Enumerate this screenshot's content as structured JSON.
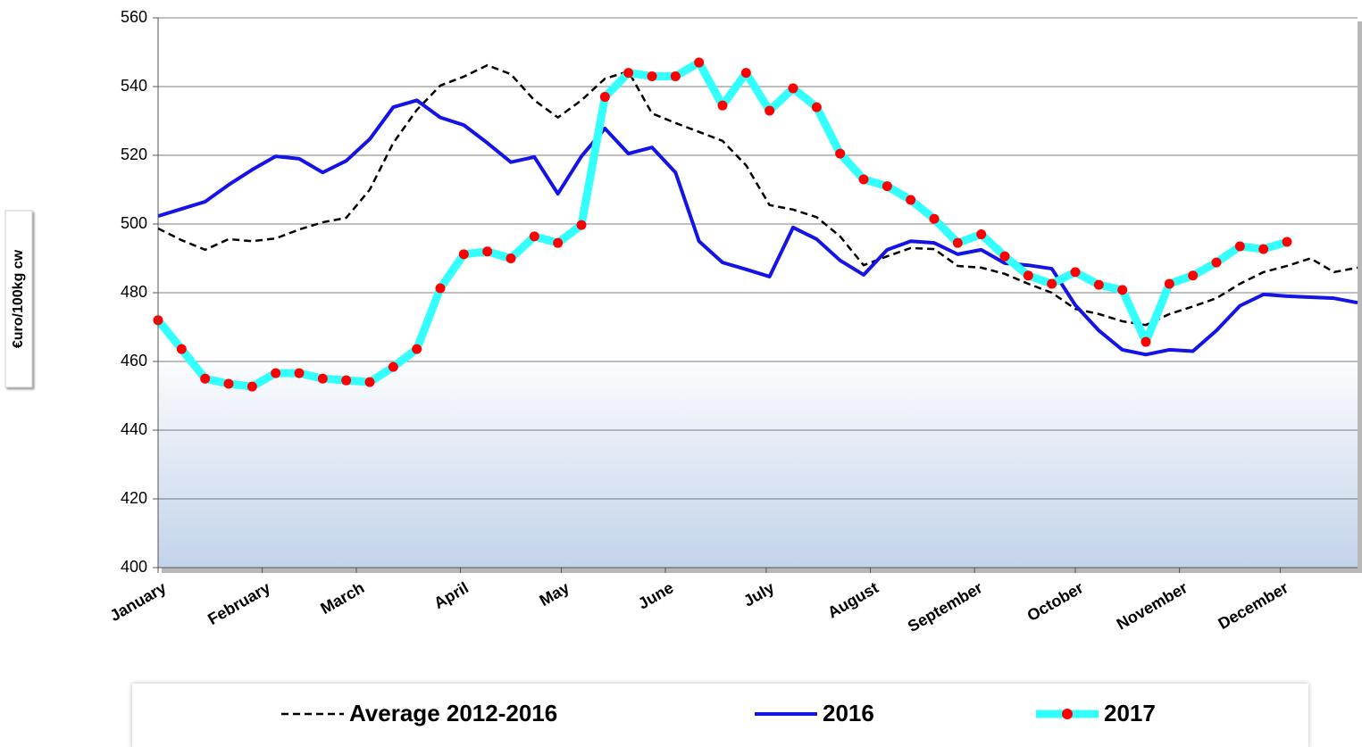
{
  "chart_data": {
    "type": "line",
    "y_label": "€uro/100kg cw",
    "x": [
      0,
      7,
      14,
      21,
      28,
      35,
      42,
      49,
      56,
      63,
      70,
      77,
      84,
      91,
      98,
      105,
      112,
      119,
      126,
      133,
      140,
      147,
      154,
      161,
      168,
      175,
      182,
      189,
      196,
      203,
      210,
      217,
      224,
      231,
      238,
      245,
      252,
      259,
      266,
      273,
      280,
      287,
      294,
      301,
      308,
      315,
      322,
      329,
      336,
      343,
      350,
      357
    ],
    "xlim": [
      0,
      357
    ],
    "xticks": [
      {
        "value": 0,
        "label": "January"
      },
      {
        "value": 31,
        "label": "February"
      },
      {
        "value": 59,
        "label": "March"
      },
      {
        "value": 90,
        "label": "April"
      },
      {
        "value": 120,
        "label": "May"
      },
      {
        "value": 151,
        "label": "June"
      },
      {
        "value": 181,
        "label": "July"
      },
      {
        "value": 212,
        "label": "August"
      },
      {
        "value": 243,
        "label": "September"
      },
      {
        "value": 273,
        "label": "October"
      },
      {
        "value": 304,
        "label": "November"
      },
      {
        "value": 334,
        "label": "December"
      }
    ],
    "ylim": [
      400,
      560
    ],
    "yticks": [
      400,
      420,
      440,
      460,
      480,
      500,
      520,
      540,
      560
    ],
    "grid": true,
    "legend": "bottom",
    "series": [
      {
        "name": "Average 2012-2016",
        "color": "#000000",
        "linestyle": "dashed",
        "values": [
          498.7,
          495.3,
          492.5,
          495.6,
          495,
          495.8,
          498.4,
          500.5,
          501.8,
          510,
          523.6,
          533.2,
          540.3,
          542.9,
          546.2,
          543.6,
          536,
          531,
          536,
          542.3,
          544.4,
          532.2,
          529.4,
          526.8,
          524.2,
          517.1,
          505.5,
          504.2,
          502,
          496.4,
          488,
          490.6,
          493,
          492.7,
          487.8,
          487.3,
          485.5,
          482.6,
          480,
          475.3,
          473.8,
          471.7,
          470.6,
          473.8,
          476,
          478.4,
          482.6,
          486,
          487.8,
          490,
          486,
          487.3
        ]
      },
      {
        "name": "2016",
        "color": "#1414e6",
        "linestyle": "solid",
        "values": [
          502.3,
          504.4,
          506.5,
          511.4,
          515.8,
          519.7,
          519,
          515,
          518.4,
          524.7,
          534,
          536,
          531,
          528.8,
          523.6,
          518,
          519.5,
          508.8,
          519.7,
          527.8,
          520.5,
          522.3,
          515,
          495,
          488.8,
          486.8,
          484.7,
          499,
          495.6,
          489.4,
          485.2,
          492.5,
          495,
          494.5,
          491.2,
          492.5,
          488.6,
          488,
          487,
          476.4,
          469,
          463.4,
          462,
          463.4,
          463,
          469,
          476.2,
          479.5,
          479,
          478.7,
          478.4,
          477.1
        ]
      },
      {
        "name": "2017",
        "color": "#33ffff",
        "linestyle": "solid",
        "marker_color": "#ff0000",
        "values": [
          472,
          463.6,
          455,
          453.5,
          452.7,
          456.6,
          456.6,
          455,
          454.5,
          454,
          458.4,
          463.6,
          481.3,
          491.2,
          492,
          490,
          496.4,
          494.5,
          499.7,
          537,
          544,
          543,
          543,
          547,
          534.5,
          544,
          533,
          539.5,
          534,
          520.5,
          513,
          511,
          507,
          501.5,
          494.5,
          497,
          490.6,
          485,
          482.6,
          486,
          482.3,
          480.8,
          465.7,
          482.6,
          485,
          488.8,
          493.5,
          492.7,
          494.8,
          null,
          null,
          null
        ]
      }
    ]
  }
}
